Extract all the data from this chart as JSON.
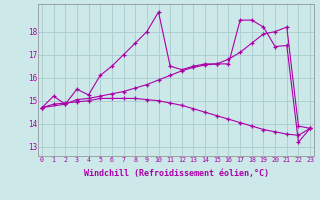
{
  "background_color": "#cce8e8",
  "grid_color": "#aacccc",
  "line_color": "#aa00aa",
  "marker": "+",
  "xlabel": "Windchill (Refroidissement éolien,°C)",
  "xlabel_fontsize": 6.0,
  "ytick_labels": [
    "13",
    "14",
    "15",
    "16",
    "17",
    "18"
  ],
  "yticks": [
    13,
    14,
    15,
    16,
    17,
    18
  ],
  "xticks": [
    0,
    1,
    2,
    3,
    4,
    5,
    6,
    7,
    8,
    9,
    10,
    11,
    12,
    13,
    14,
    15,
    16,
    17,
    18,
    19,
    20,
    21,
    22,
    23
  ],
  "xlim": [
    -0.3,
    23.3
  ],
  "ylim": [
    12.6,
    19.2
  ],
  "series1": [
    [
      0,
      14.7
    ],
    [
      1,
      15.2
    ],
    [
      2,
      14.85
    ],
    [
      3,
      15.5
    ],
    [
      4,
      15.25
    ],
    [
      5,
      16.1
    ],
    [
      6,
      16.5
    ],
    [
      7,
      17.0
    ],
    [
      8,
      17.5
    ],
    [
      9,
      18.0
    ],
    [
      10,
      18.85
    ],
    [
      11,
      16.5
    ],
    [
      12,
      16.35
    ],
    [
      13,
      16.5
    ],
    [
      14,
      16.6
    ],
    [
      15,
      16.6
    ],
    [
      16,
      16.6
    ],
    [
      17,
      18.5
    ],
    [
      18,
      18.5
    ],
    [
      19,
      18.2
    ],
    [
      20,
      17.35
    ],
    [
      21,
      17.4
    ],
    [
      22,
      13.2
    ],
    [
      23,
      13.8
    ]
  ],
  "series2": [
    [
      0,
      14.7
    ],
    [
      2,
      14.85
    ],
    [
      3,
      15.05
    ],
    [
      4,
      15.1
    ],
    [
      5,
      15.2
    ],
    [
      6,
      15.3
    ],
    [
      7,
      15.4
    ],
    [
      8,
      15.55
    ],
    [
      9,
      15.7
    ],
    [
      10,
      15.9
    ],
    [
      11,
      16.1
    ],
    [
      12,
      16.3
    ],
    [
      13,
      16.45
    ],
    [
      14,
      16.55
    ],
    [
      15,
      16.6
    ],
    [
      16,
      16.8
    ],
    [
      17,
      17.1
    ],
    [
      18,
      17.5
    ],
    [
      19,
      17.9
    ],
    [
      20,
      18.0
    ],
    [
      21,
      18.2
    ],
    [
      22,
      13.9
    ],
    [
      23,
      13.8
    ]
  ],
  "series3": [
    [
      0,
      14.7
    ],
    [
      1,
      14.85
    ],
    [
      2,
      14.9
    ],
    [
      3,
      14.95
    ],
    [
      4,
      15.0
    ],
    [
      5,
      15.1
    ],
    [
      6,
      15.1
    ],
    [
      7,
      15.1
    ],
    [
      8,
      15.1
    ],
    [
      9,
      15.05
    ],
    [
      10,
      15.0
    ],
    [
      11,
      14.9
    ],
    [
      12,
      14.8
    ],
    [
      13,
      14.65
    ],
    [
      14,
      14.5
    ],
    [
      15,
      14.35
    ],
    [
      16,
      14.2
    ],
    [
      17,
      14.05
    ],
    [
      18,
      13.9
    ],
    [
      19,
      13.75
    ],
    [
      20,
      13.65
    ],
    [
      21,
      13.55
    ],
    [
      22,
      13.5
    ],
    [
      23,
      13.8
    ]
  ]
}
